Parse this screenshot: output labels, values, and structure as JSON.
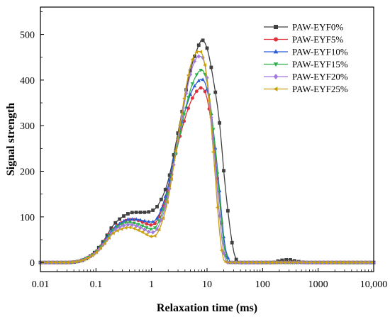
{
  "chart_data": {
    "type": "line",
    "xlabel": "Relaxation time (ms)",
    "ylabel": "Signal strength",
    "xscale": "log",
    "xlim": [
      0.01,
      10000
    ],
    "ylim": [
      -20,
      560
    ],
    "x_ticks": [
      0.01,
      0.1,
      1,
      10,
      100,
      1000,
      10000
    ],
    "x_tick_labels": [
      "0.01",
      "0.1",
      "1",
      "10",
      "100",
      "1000",
      "10,000"
    ],
    "y_ticks": [
      0,
      100,
      200,
      300,
      400,
      500
    ],
    "y_tick_labels": [
      "0",
      "100",
      "200",
      "300",
      "400",
      "500"
    ],
    "grid": false,
    "legend_position": "top-right",
    "series": [
      {
        "name": "PAW-EYF0%",
        "color": "#404040",
        "marker": "square",
        "x": [
          0.01,
          0.03,
          0.05,
          0.07,
          0.1,
          0.15,
          0.2,
          0.3,
          0.4,
          0.5,
          0.7,
          1,
          1.3,
          2,
          3,
          5,
          7,
          8,
          10,
          13,
          17,
          20,
          25,
          30,
          35,
          40,
          60,
          100,
          150,
          200,
          300,
          400,
          600,
          1000,
          10000
        ],
        "y": [
          0,
          0,
          3,
          10,
          25,
          55,
          80,
          100,
          108,
          110,
          110,
          113,
          125,
          180,
          285,
          420,
          475,
          488,
          470,
          400,
          300,
          200,
          90,
          25,
          3,
          0,
          0,
          0,
          0,
          4,
          6,
          3,
          0,
          0,
          0
        ]
      },
      {
        "name": "PAW-EYF5%",
        "color": "#e0303a",
        "marker": "circle",
        "x": [
          0.01,
          0.03,
          0.05,
          0.07,
          0.1,
          0.15,
          0.2,
          0.3,
          0.4,
          0.5,
          0.7,
          1,
          1.3,
          2,
          3,
          5,
          7,
          8,
          10,
          13,
          17,
          20,
          25,
          30,
          35,
          40,
          60,
          100,
          150,
          200,
          300,
          400,
          600,
          1000,
          10000
        ],
        "y": [
          0,
          0,
          3,
          10,
          24,
          50,
          72,
          88,
          94,
          94,
          88,
          82,
          95,
          160,
          260,
          350,
          380,
          383,
          360,
          270,
          130,
          40,
          0,
          0,
          0,
          0,
          0,
          0,
          0,
          0,
          0,
          0,
          0,
          0,
          0
        ]
      },
      {
        "name": "PAW-EYF10%",
        "color": "#2a5bd7",
        "marker": "triangle-up",
        "x": [
          0.01,
          0.03,
          0.05,
          0.07,
          0.1,
          0.15,
          0.2,
          0.3,
          0.4,
          0.5,
          0.7,
          1,
          1.3,
          2,
          3,
          5,
          7,
          8,
          10,
          13,
          17,
          20,
          25,
          30,
          35,
          40,
          60,
          100,
          150,
          200,
          300,
          400,
          600,
          1000,
          10000
        ],
        "y": [
          0,
          0,
          3,
          10,
          24,
          50,
          72,
          89,
          95,
          95,
          92,
          89,
          100,
          168,
          272,
          368,
          398,
          402,
          380,
          290,
          150,
          55,
          5,
          0,
          0,
          0,
          0,
          0,
          0,
          0,
          0,
          0,
          0,
          0,
          0
        ]
      },
      {
        "name": "PAW-EYF15%",
        "color": "#2db04b",
        "marker": "triangle-down",
        "x": [
          0.01,
          0.03,
          0.05,
          0.07,
          0.1,
          0.15,
          0.2,
          0.3,
          0.4,
          0.5,
          0.7,
          1,
          1.3,
          2,
          3,
          5,
          7,
          8,
          10,
          13,
          17,
          20,
          25,
          30,
          35,
          40,
          60,
          100,
          150,
          200,
          300,
          400,
          600,
          1000,
          10000
        ],
        "y": [
          0,
          0,
          3,
          10,
          23,
          48,
          70,
          85,
          88,
          86,
          80,
          73,
          85,
          155,
          262,
          378,
          418,
          422,
          395,
          290,
          135,
          40,
          0,
          0,
          0,
          0,
          0,
          0,
          0,
          0,
          0,
          0,
          0,
          0,
          0
        ]
      },
      {
        "name": "PAW-EYF20%",
        "color": "#a07ae0",
        "marker": "diamond",
        "x": [
          0.01,
          0.03,
          0.05,
          0.07,
          0.1,
          0.15,
          0.2,
          0.3,
          0.4,
          0.5,
          0.7,
          1,
          1.3,
          2,
          3,
          5,
          7,
          8,
          10,
          13,
          17,
          20,
          25,
          30,
          35,
          40,
          60,
          100,
          150,
          200,
          300,
          400,
          600,
          1000,
          10000
        ],
        "y": [
          0,
          0,
          3,
          10,
          22,
          46,
          67,
          80,
          83,
          81,
          74,
          66,
          76,
          148,
          270,
          412,
          452,
          452,
          405,
          265,
          95,
          20,
          0,
          0,
          0,
          0,
          0,
          0,
          0,
          0,
          0,
          0,
          0,
          0,
          0
        ]
      },
      {
        "name": "PAW-EYF25%",
        "color": "#c8a012",
        "marker": "triangle-left",
        "x": [
          0.01,
          0.03,
          0.05,
          0.07,
          0.1,
          0.15,
          0.2,
          0.3,
          0.4,
          0.5,
          0.7,
          1,
          1.3,
          2,
          3,
          5,
          7,
          8,
          10,
          13,
          17,
          20,
          25,
          30,
          35,
          40,
          60,
          100,
          150,
          200,
          300,
          400,
          600,
          1000,
          10000
        ],
        "y": [
          0,
          0,
          3,
          9,
          21,
          44,
          63,
          74,
          77,
          74,
          66,
          57,
          66,
          140,
          275,
          430,
          463,
          460,
          400,
          240,
          60,
          5,
          0,
          0,
          0,
          0,
          0,
          0,
          0,
          0,
          0,
          0,
          0,
          0,
          0
        ]
      }
    ]
  }
}
